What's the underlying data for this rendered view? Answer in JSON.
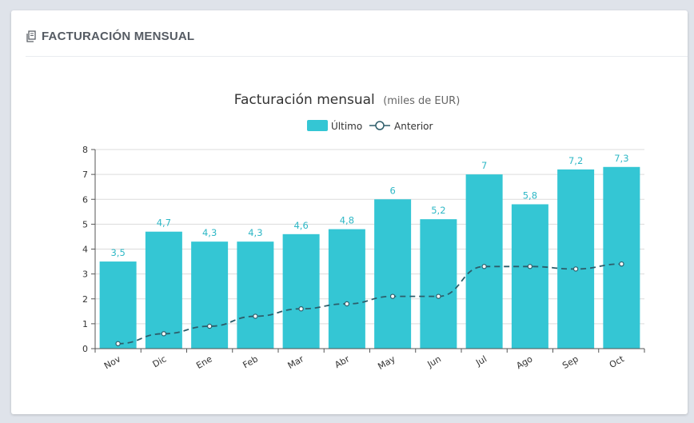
{
  "card": {
    "title": "FACTURACIÓN MENSUAL",
    "icon": "document-copy-icon"
  },
  "colors": {
    "bar": "#34c6d4",
    "bar_label": "#2fb8c6",
    "line": "#2d5d6a",
    "axis": "#555555",
    "grid": "#dcdcdc"
  },
  "chart_data": {
    "type": "bar",
    "title": "Facturación mensual",
    "subtitle": "(miles de EUR)",
    "xlabel": "",
    "ylabel": "",
    "ylim": [
      0,
      8
    ],
    "yticks": [
      "0",
      "1",
      "2",
      "3",
      "4",
      "5",
      "6",
      "7",
      "8"
    ],
    "grid": true,
    "legend_position": "top-center",
    "categories": [
      "Nov",
      "Dic",
      "Ene",
      "Feb",
      "Mar",
      "Abr",
      "May",
      "Jun",
      "Jul",
      "Ago",
      "Sep",
      "Oct"
    ],
    "series": [
      {
        "name": "Último",
        "type": "bar",
        "values": [
          3.5,
          4.7,
          4.3,
          4.3,
          4.6,
          4.8,
          6,
          5.2,
          7,
          5.8,
          7.2,
          7.3
        ],
        "labels": [
          "3,5",
          "4,7",
          "4,3",
          "4,3",
          "4,6",
          "4,8",
          "6",
          "5,2",
          "7",
          "5,8",
          "7,2",
          "7,3"
        ]
      },
      {
        "name": "Anterior",
        "type": "line",
        "style": "dashed",
        "values": [
          0.2,
          0.6,
          0.9,
          1.3,
          1.6,
          1.8,
          2.1,
          2.1,
          3.3,
          3.3,
          3.2,
          3.4
        ]
      }
    ]
  }
}
